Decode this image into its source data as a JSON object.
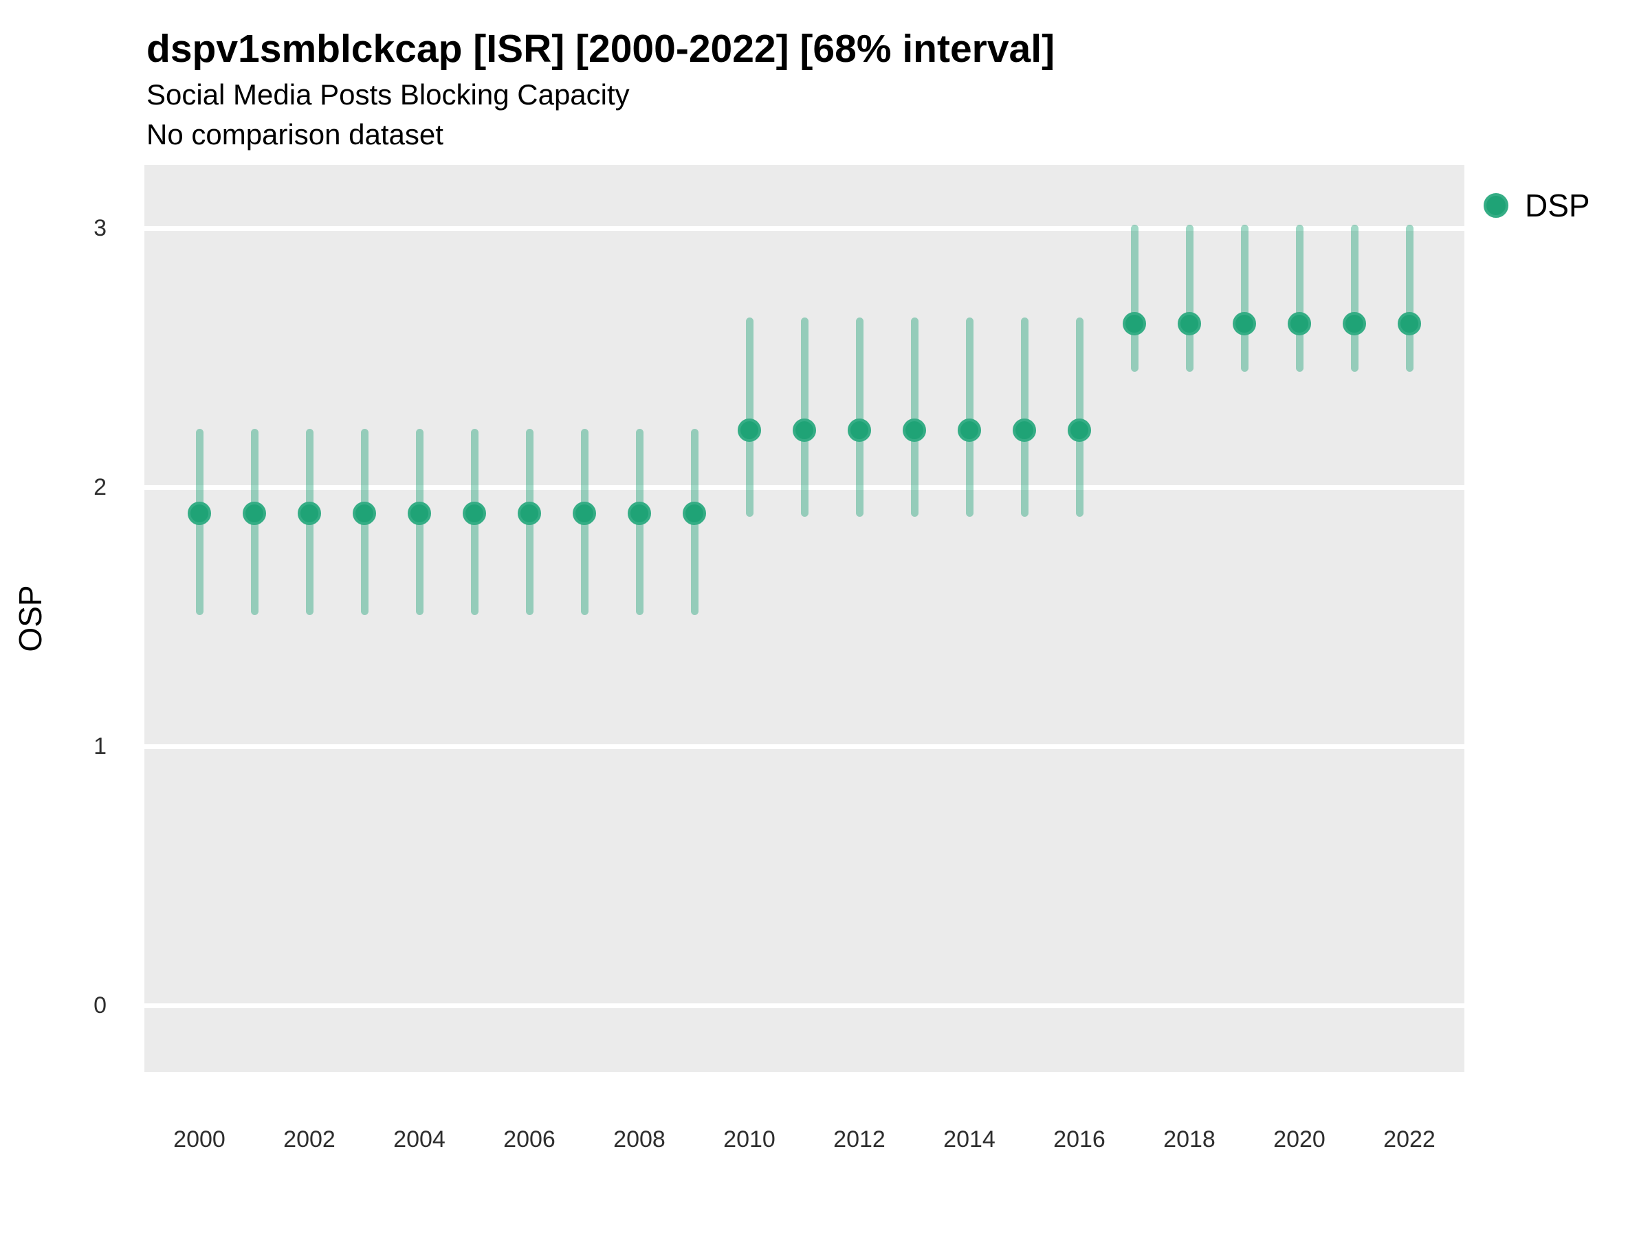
{
  "header": {
    "title": "dspv1smblckcap [ISR] [2000-2022] [68% interval]",
    "subtitle": "Social Media Posts Blocking Capacity",
    "note": "No comparison dataset"
  },
  "legend": {
    "label": "DSP"
  },
  "colors": {
    "point_fill": "#1fa376",
    "point_ring": "#35ad85",
    "range_bar": "rgba(31,163,118,0.42)",
    "panel_background": "#ebebeb",
    "gridline": "#ffffff"
  },
  "chart_data": {
    "type": "pointrange",
    "title": "dspv1smblckcap [ISR] [2000-2022] [68% interval]",
    "subtitle": "Social Media Posts Blocking Capacity",
    "note": "No comparison dataset",
    "interval": "68%",
    "xlabel": "",
    "ylabel": "OSP",
    "x": [
      2000,
      2001,
      2002,
      2003,
      2004,
      2005,
      2006,
      2007,
      2008,
      2009,
      2010,
      2011,
      2012,
      2013,
      2014,
      2015,
      2016,
      2017,
      2018,
      2019,
      2020,
      2021,
      2022
    ],
    "series": [
      {
        "name": "DSP",
        "color": "#1fa376",
        "values": [
          1.9,
          1.9,
          1.9,
          1.9,
          1.9,
          1.9,
          1.9,
          1.9,
          1.9,
          1.9,
          2.22,
          2.22,
          2.22,
          2.22,
          2.22,
          2.22,
          2.22,
          2.63,
          2.63,
          2.63,
          2.63,
          2.63,
          2.63
        ],
        "lower": [
          1.52,
          1.52,
          1.52,
          1.52,
          1.52,
          1.52,
          1.52,
          1.52,
          1.52,
          1.52,
          1.9,
          1.9,
          1.9,
          1.9,
          1.9,
          1.9,
          1.9,
          2.46,
          2.46,
          2.46,
          2.46,
          2.46,
          2.46
        ],
        "upper": [
          2.21,
          2.21,
          2.21,
          2.21,
          2.21,
          2.21,
          2.21,
          2.21,
          2.21,
          2.21,
          2.64,
          2.64,
          2.64,
          2.64,
          2.64,
          2.64,
          2.64,
          3.0,
          3.0,
          3.0,
          3.0,
          3.0,
          3.0
        ]
      }
    ],
    "yticks": [
      0,
      1,
      2,
      3
    ],
    "xticks": [
      2000,
      2002,
      2004,
      2006,
      2008,
      2010,
      2012,
      2014,
      2016,
      2018,
      2020,
      2022
    ],
    "ylim": [
      -0.26,
      3.24
    ],
    "grid": "horizontal major gridlines only, white on gray panel",
    "legend_position": "right-top"
  }
}
